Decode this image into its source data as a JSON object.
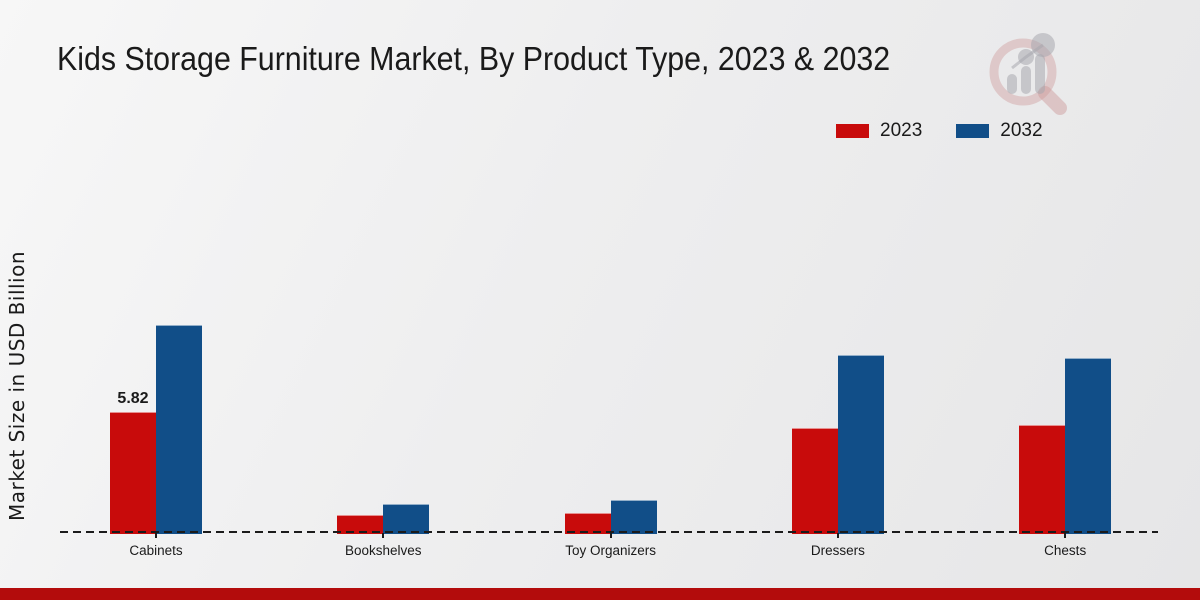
{
  "header": {
    "title": "Kids Storage Furniture Market, By Product Type, 2023 & 2032"
  },
  "axis": {
    "y_label": "Market Size in USD Billion"
  },
  "legend": {
    "position": "top-right",
    "items": [
      {
        "label": "2023",
        "color": "#c80b0b"
      },
      {
        "label": "2032",
        "color": "#114e88"
      }
    ]
  },
  "chart_data": {
    "type": "bar",
    "title": "Kids Storage Furniture Market, By Product Type, 2023 & 2032",
    "categories": [
      "Cabinets",
      "Bookshelves",
      "Toy Organizers",
      "Dressers",
      "Chests"
    ],
    "series": [
      {
        "name": "2023",
        "color": "#c80b0b",
        "values": [
          5.82,
          0.85,
          0.95,
          5.05,
          5.2
        ],
        "data_labels": [
          "5.82",
          "",
          "",
          "",
          ""
        ]
      },
      {
        "name": "2032",
        "color": "#114e88",
        "values": [
          10.0,
          1.4,
          1.6,
          8.55,
          8.4
        ],
        "data_labels": [
          "",
          "",
          "",
          "",
          ""
        ]
      }
    ],
    "xlabel": "",
    "ylabel": "Market Size in USD Billion",
    "ylim": [
      0,
      11
    ],
    "grid": false,
    "zero_line_style": "dashed",
    "legend_position": "top-right"
  },
  "footer": {
    "band_color": "#b30c0c"
  },
  "watermark": {
    "name": "market-research-magnifier-logo",
    "ring_color": "rgba(205,150,150,0.45)",
    "bars_color": "rgba(168,168,175,0.55)"
  }
}
